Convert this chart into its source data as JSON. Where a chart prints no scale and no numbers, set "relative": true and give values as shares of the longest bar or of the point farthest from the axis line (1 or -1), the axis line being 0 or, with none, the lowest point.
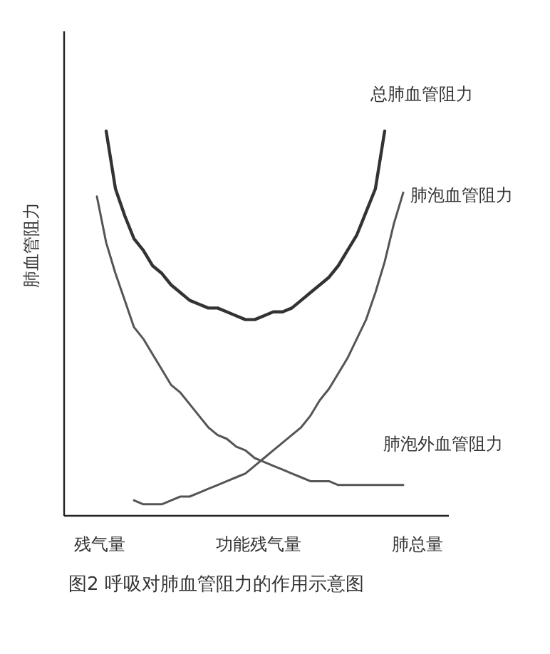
{
  "chart_data": {
    "type": "line",
    "relative": true,
    "title": "图2  呼吸对肺血管阻力的作用示意图",
    "ylabel": "肺血管阻力",
    "categories": [
      null,
      null,
      null,
      null,
      null,
      null,
      null,
      null,
      null,
      null,
      null,
      null,
      null,
      null,
      null,
      null,
      null,
      null,
      null,
      null,
      null,
      null,
      null,
      null,
      null,
      null,
      null,
      null,
      null,
      null,
      null,
      null,
      null,
      null
    ],
    "annotations": [
      "残气量",
      "功能残气量",
      "肺总量"
    ],
    "legend": false,
    "grid": false,
    "marker": "none",
    "series": [
      {
        "name": "总肺血管阻力",
        "color": "#333333",
        "values": [
          null,
          1.0,
          0.85,
          0.78,
          0.72,
          0.69,
          0.65,
          0.63,
          0.6,
          0.58,
          0.56,
          0.55,
          0.54,
          0.54,
          0.53,
          0.52,
          0.51,
          0.51,
          0.52,
          0.53,
          0.53,
          0.54,
          0.56,
          0.58,
          0.6,
          0.62,
          0.65,
          0.69,
          0.73,
          0.79,
          0.85,
          1.0,
          null,
          null
        ]
      },
      {
        "name": "肺泡血管阻力",
        "color": "#555555",
        "values": [
          null,
          null,
          null,
          null,
          0.04,
          0.03,
          0.03,
          0.03,
          0.04,
          0.05,
          0.05,
          0.06,
          0.07,
          0.08,
          0.09,
          0.1,
          0.11,
          0.13,
          0.15,
          0.17,
          0.19,
          0.21,
          0.23,
          0.26,
          0.3,
          0.33,
          0.37,
          0.41,
          0.46,
          0.51,
          0.58,
          0.66,
          0.76,
          0.84
        ]
      },
      {
        "name": "肺泡外血管阻力",
        "color": "#555555",
        "values": [
          0.83,
          0.71,
          0.63,
          0.56,
          0.49,
          0.46,
          0.42,
          0.38,
          0.34,
          0.32,
          0.29,
          0.26,
          0.23,
          0.21,
          0.2,
          0.18,
          0.17,
          0.15,
          0.14,
          0.13,
          0.12,
          0.11,
          0.1,
          0.09,
          0.09,
          0.09,
          0.08,
          0.08,
          0.08,
          0.08,
          0.08,
          0.08,
          0.08,
          0.08
        ]
      }
    ]
  }
}
